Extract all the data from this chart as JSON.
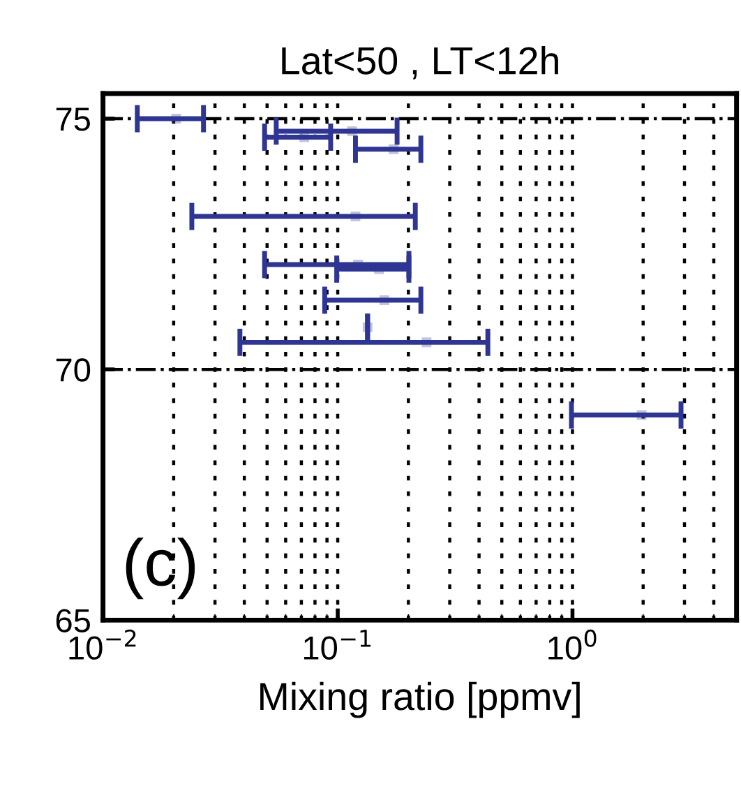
{
  "chart_data": {
    "type": "scatter",
    "title": "Lat<50 , LT<12h",
    "xlabel": "Mixing ratio [ppmv]",
    "log": "x",
    "xlim": [
      0.01,
      5
    ],
    "xticks": [
      {
        "value": 0.01,
        "label": "10$^{−2}$"
      },
      {
        "value": 0.1,
        "label": "10$^{−1}$"
      },
      {
        "value": 1,
        "label": "10$^{0}$"
      }
    ],
    "ylim": [
      65,
      75.5
    ],
    "yticks": [
      65,
      70,
      75
    ],
    "grid": true,
    "marker": "square",
    "annotations": [
      "(c)"
    ],
    "series": [
      {
        "color": "#2e3592",
        "x": [
          0.0205,
          0.115,
          0.072,
          0.173,
          0.119,
          0.122,
          0.15,
          0.158,
          0.134,
          0.239,
          1.97
        ],
        "values": [
          75.0,
          74.75,
          74.63,
          74.39,
          73.05,
          72.09,
          72.0,
          71.38,
          70.84,
          70.54,
          69.09
        ],
        "xerrors": [
          [
            0.014,
            0.0268
          ],
          [
            0.0547,
            0.179
          ],
          [
            0.0488,
            0.0933
          ],
          [
            0.119,
            0.226
          ],
          [
            0.0239,
            0.214
          ],
          [
            0.0488,
            0.201
          ],
          [
            0.099,
            0.201
          ],
          [
            0.088,
            0.226
          ],
          [
            0.134,
            0.134
          ],
          [
            0.0383,
            0.436
          ],
          [
            0.99,
            2.9
          ]
        ]
      }
    ]
  }
}
